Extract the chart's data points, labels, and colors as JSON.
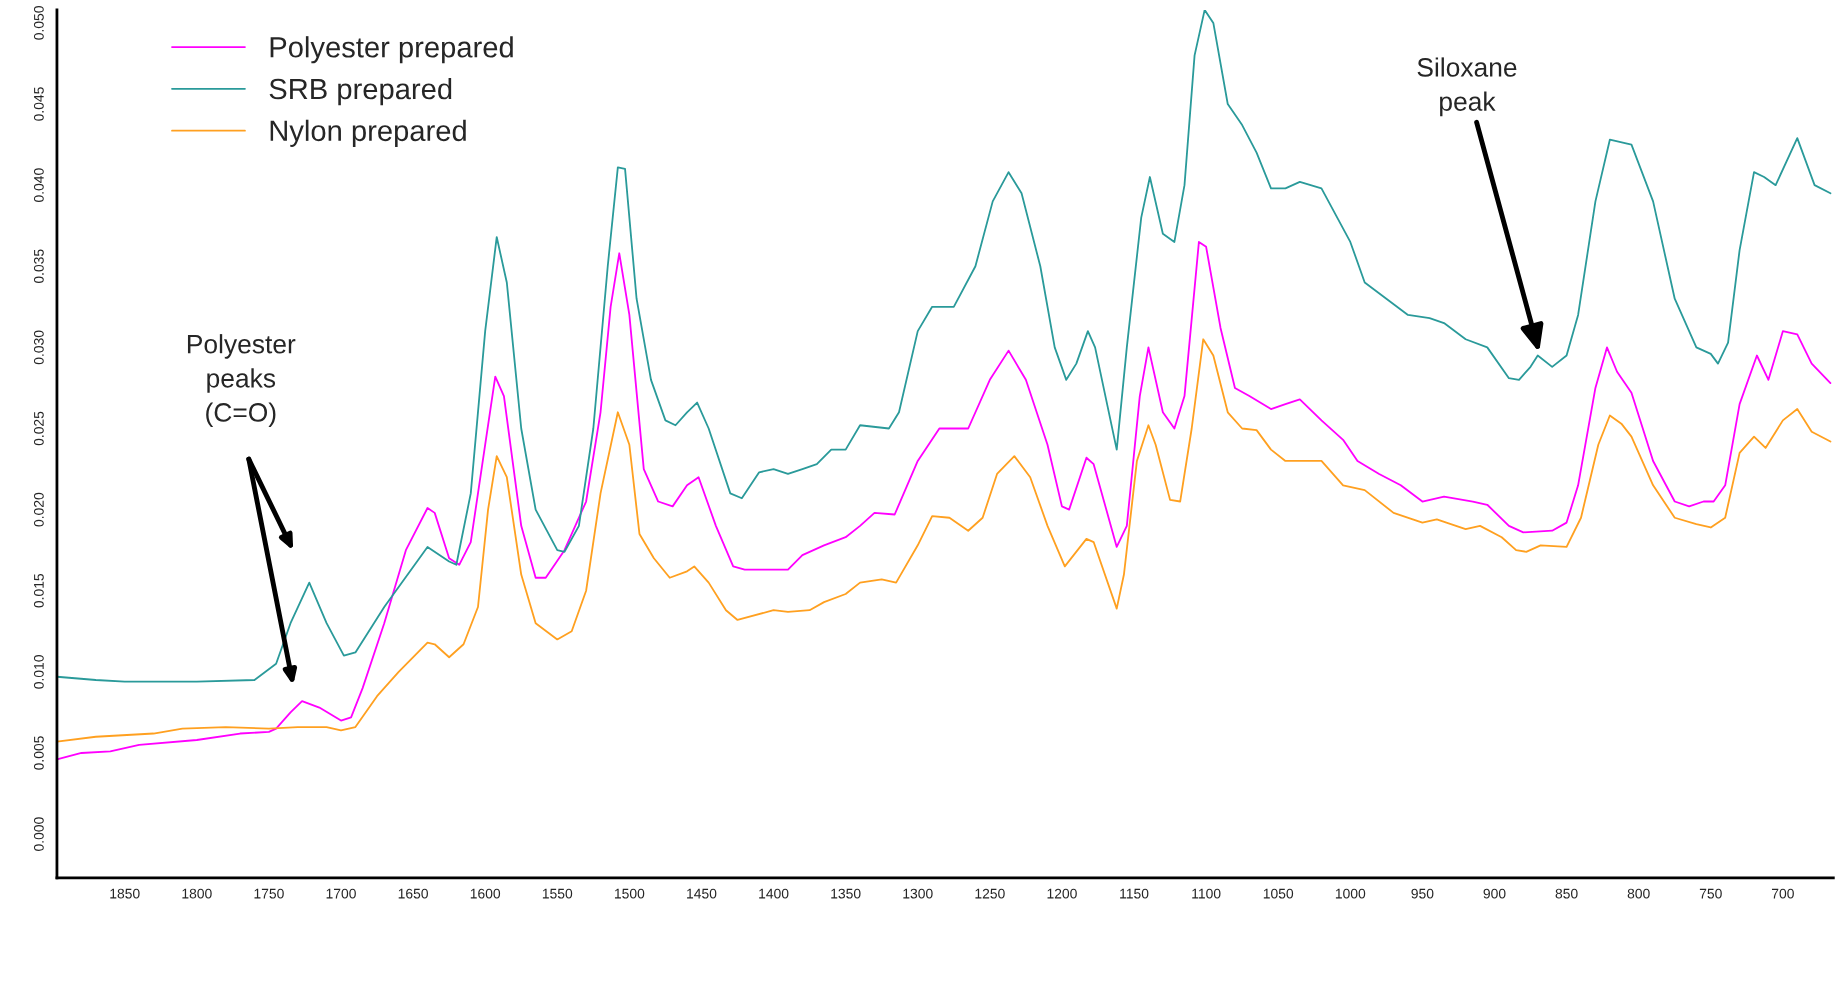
{
  "chart_data": {
    "type": "line",
    "xlim": [
      1897,
      665
    ],
    "ylim": [
      -0.0027,
      0.0508
    ],
    "xticks": [
      1850,
      1800,
      1750,
      1700,
      1650,
      1600,
      1550,
      1500,
      1450,
      1400,
      1350,
      1300,
      1250,
      1200,
      1150,
      1100,
      1050,
      1000,
      950,
      900,
      850,
      800,
      750,
      700
    ],
    "yticks": [
      {
        "value": 0,
        "label": "0.000"
      },
      {
        "value": 0.005,
        "label": "0.005"
      },
      {
        "value": 0.01,
        "label": "0.010"
      },
      {
        "value": 0.015,
        "label": "0.015"
      },
      {
        "value": 0.02,
        "label": "0.020"
      },
      {
        "value": 0.025,
        "label": "0.025"
      },
      {
        "value": 0.03,
        "label": "0.030"
      },
      {
        "value": 0.035,
        "label": "0.035"
      },
      {
        "value": 0.04,
        "label": "0.040"
      },
      {
        "value": 0.045,
        "label": "0.045"
      },
      {
        "value": 0.05,
        "label": "0.050"
      }
    ],
    "grid": false,
    "legend": "top left",
    "marker": "none",
    "line_style": "solid",
    "series": [
      {
        "name": "Polyester prepared",
        "color": "#ff00ff",
        "x": [
          1897,
          1880,
          1860,
          1840,
          1800,
          1770,
          1750,
          1745,
          1735,
          1727,
          1715,
          1700,
          1693,
          1685,
          1670,
          1655,
          1640,
          1635,
          1625,
          1618,
          1610,
          1600,
          1593,
          1587,
          1575,
          1565,
          1558,
          1545,
          1530,
          1520,
          1513,
          1507,
          1500,
          1490,
          1480,
          1470,
          1460,
          1452,
          1440,
          1428,
          1420,
          1400,
          1390,
          1380,
          1365,
          1350,
          1340,
          1330,
          1316,
          1300,
          1285,
          1265,
          1250,
          1237,
          1225,
          1210,
          1200,
          1195,
          1183,
          1178,
          1162,
          1155,
          1146,
          1140,
          1130,
          1122,
          1115,
          1105,
          1100,
          1090,
          1080,
          1070,
          1055,
          1045,
          1035,
          1020,
          1005,
          995,
          980,
          965,
          950,
          935,
          915,
          905,
          890,
          880,
          860,
          850,
          842,
          830,
          822,
          815,
          805,
          790,
          775,
          765,
          755,
          748,
          740,
          730,
          718,
          710,
          700,
          690,
          680,
          667
        ],
        "values": [
          0.0046,
          0.005,
          0.0051,
          0.0055,
          0.0058,
          0.0062,
          0.0063,
          0.0065,
          0.0075,
          0.0082,
          0.0078,
          0.007,
          0.0072,
          0.009,
          0.013,
          0.0175,
          0.0201,
          0.0198,
          0.017,
          0.0166,
          0.018,
          0.024,
          0.0282,
          0.027,
          0.019,
          0.0158,
          0.0158,
          0.0175,
          0.0205,
          0.026,
          0.0325,
          0.0358,
          0.032,
          0.0225,
          0.0205,
          0.0202,
          0.0215,
          0.022,
          0.019,
          0.0165,
          0.0163,
          0.0163,
          0.0163,
          0.0172,
          0.0178,
          0.0183,
          0.019,
          0.0198,
          0.0197,
          0.023,
          0.025,
          0.025,
          0.028,
          0.0298,
          0.028,
          0.024,
          0.0202,
          0.02,
          0.0232,
          0.0228,
          0.0177,
          0.019,
          0.027,
          0.03,
          0.026,
          0.025,
          0.027,
          0.0365,
          0.0362,
          0.0312,
          0.0275,
          0.027,
          0.0262,
          0.0265,
          0.0268,
          0.0255,
          0.0243,
          0.023,
          0.0222,
          0.0215,
          0.0205,
          0.0208,
          0.0205,
          0.0203,
          0.019,
          0.0186,
          0.0187,
          0.0192,
          0.0215,
          0.0275,
          0.03,
          0.0285,
          0.0272,
          0.023,
          0.0205,
          0.0202,
          0.0205,
          0.0205,
          0.0215,
          0.0265,
          0.0295,
          0.028,
          0.031,
          0.0308,
          0.029,
          0.0278
        ]
      },
      {
        "name": "SRB prepared",
        "color": "#2a9a9a",
        "x": [
          1897,
          1870,
          1850,
          1800,
          1760,
          1745,
          1735,
          1722,
          1710,
          1698,
          1690,
          1670,
          1640,
          1625,
          1620,
          1610,
          1600,
          1592,
          1585,
          1575,
          1565,
          1550,
          1545,
          1535,
          1525,
          1515,
          1508,
          1503,
          1495,
          1485,
          1475,
          1468,
          1460,
          1453,
          1445,
          1430,
          1422,
          1410,
          1400,
          1390,
          1380,
          1370,
          1360,
          1350,
          1340,
          1320,
          1313,
          1300,
          1290,
          1275,
          1260,
          1248,
          1237,
          1228,
          1215,
          1205,
          1197,
          1190,
          1182,
          1177,
          1162,
          1155,
          1145,
          1139,
          1130,
          1122,
          1115,
          1108,
          1101,
          1095,
          1085,
          1075,
          1065,
          1055,
          1045,
          1035,
          1020,
          1000,
          990,
          975,
          960,
          945,
          935,
          920,
          905,
          890,
          883,
          875,
          870,
          860,
          850,
          842,
          830,
          820,
          805,
          790,
          775,
          760,
          750,
          745,
          738,
          730,
          720,
          713,
          705,
          690,
          678,
          667
        ],
        "values": [
          0.0097,
          0.0095,
          0.0094,
          0.0094,
          0.0095,
          0.0105,
          0.013,
          0.0155,
          0.013,
          0.011,
          0.0112,
          0.014,
          0.0177,
          0.0168,
          0.0166,
          0.021,
          0.031,
          0.0368,
          0.034,
          0.025,
          0.02,
          0.0175,
          0.0174,
          0.019,
          0.025,
          0.035,
          0.0411,
          0.041,
          0.033,
          0.028,
          0.0255,
          0.0252,
          0.026,
          0.0266,
          0.025,
          0.021,
          0.0207,
          0.0223,
          0.0225,
          0.0222,
          0.0225,
          0.0228,
          0.0237,
          0.0237,
          0.0252,
          0.025,
          0.026,
          0.031,
          0.0325,
          0.0325,
          0.035,
          0.039,
          0.0408,
          0.0395,
          0.035,
          0.03,
          0.028,
          0.029,
          0.031,
          0.03,
          0.0237,
          0.03,
          0.038,
          0.0405,
          0.037,
          0.0365,
          0.04,
          0.048,
          0.0508,
          0.05,
          0.045,
          0.0437,
          0.042,
          0.0398,
          0.0398,
          0.0402,
          0.0398,
          0.0365,
          0.034,
          0.033,
          0.032,
          0.0318,
          0.0315,
          0.0305,
          0.03,
          0.0281,
          0.028,
          0.0288,
          0.0295,
          0.0288,
          0.0295,
          0.032,
          0.039,
          0.0428,
          0.0425,
          0.039,
          0.033,
          0.03,
          0.0296,
          0.029,
          0.0303,
          0.036,
          0.0408,
          0.0405,
          0.04,
          0.0429,
          0.04,
          0.0395
        ]
      },
      {
        "name": "Nylon prepared",
        "color": "#ffa020",
        "x": [
          1897,
          1870,
          1830,
          1810,
          1780,
          1750,
          1730,
          1710,
          1700,
          1690,
          1675,
          1660,
          1640,
          1635,
          1625,
          1615,
          1605,
          1598,
          1592,
          1585,
          1575,
          1565,
          1550,
          1540,
          1530,
          1520,
          1508,
          1500,
          1493,
          1483,
          1472,
          1460,
          1455,
          1445,
          1433,
          1425,
          1400,
          1390,
          1375,
          1365,
          1350,
          1340,
          1325,
          1315,
          1300,
          1290,
          1278,
          1265,
          1255,
          1245,
          1233,
          1222,
          1210,
          1198,
          1183,
          1178,
          1162,
          1157,
          1148,
          1140,
          1135,
          1125,
          1118,
          1110,
          1102,
          1095,
          1085,
          1075,
          1065,
          1055,
          1045,
          1020,
          1005,
          990,
          970,
          950,
          940,
          920,
          910,
          895,
          885,
          878,
          868,
          850,
          840,
          828,
          820,
          812,
          805,
          790,
          775,
          760,
          750,
          740,
          730,
          720,
          712,
          700,
          690,
          680,
          667
        ],
        "values": [
          0.0057,
          0.006,
          0.0062,
          0.0065,
          0.0066,
          0.0065,
          0.0066,
          0.0066,
          0.0064,
          0.0066,
          0.0085,
          0.01,
          0.0118,
          0.0117,
          0.0109,
          0.0117,
          0.014,
          0.02,
          0.0233,
          0.022,
          0.016,
          0.013,
          0.012,
          0.0125,
          0.015,
          0.021,
          0.026,
          0.024,
          0.0185,
          0.017,
          0.0158,
          0.0162,
          0.0165,
          0.0155,
          0.0138,
          0.0132,
          0.0138,
          0.0137,
          0.0138,
          0.0143,
          0.0148,
          0.0155,
          0.0157,
          0.0155,
          0.0178,
          0.0196,
          0.0195,
          0.0187,
          0.0195,
          0.0222,
          0.0233,
          0.022,
          0.019,
          0.0165,
          0.0182,
          0.018,
          0.0139,
          0.016,
          0.023,
          0.0252,
          0.024,
          0.0206,
          0.0205,
          0.025,
          0.0305,
          0.0295,
          0.026,
          0.025,
          0.0249,
          0.0237,
          0.023,
          0.023,
          0.0215,
          0.0212,
          0.0198,
          0.0192,
          0.0194,
          0.0188,
          0.019,
          0.0183,
          0.0175,
          0.0174,
          0.0178,
          0.0177,
          0.0195,
          0.024,
          0.0258,
          0.0253,
          0.0245,
          0.0215,
          0.0195,
          0.0191,
          0.0189,
          0.0195,
          0.0235,
          0.0245,
          0.0238,
          0.0255,
          0.0262,
          0.0248,
          0.0242
        ]
      }
    ],
    "annotations": [
      "Polyester\npeaks\n(C=O)",
      {
        "text": "Siloxane\npeak",
        "x": 869,
        "y": 0.0297
      }
    ]
  }
}
